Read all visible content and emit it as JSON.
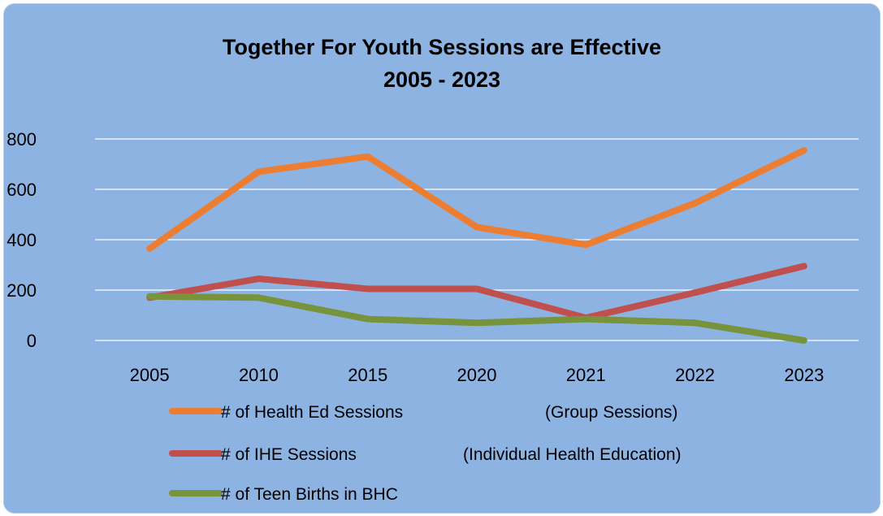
{
  "chart_data": {
    "type": "line",
    "title": "Together For Youth Sessions are Effective",
    "subtitle": "2005 - 2023",
    "categories": [
      "2005",
      "2010",
      "2015",
      "2020",
      "2021",
      "2022",
      "2023"
    ],
    "ylim": [
      0,
      800
    ],
    "yticks": [
      0,
      200,
      400,
      600,
      800
    ],
    "grid": true,
    "legend_position": "bottom",
    "series": [
      {
        "name": "# of Health Ed Sessions",
        "note": "(Group Sessions)",
        "color": "#ed7d31",
        "values": [
          365,
          670,
          730,
          450,
          380,
          545,
          755
        ]
      },
      {
        "name": "# of IHE Sessions",
        "note": "(Individual Health Education)",
        "color": "#c0504d",
        "values": [
          170,
          245,
          205,
          205,
          90,
          190,
          295
        ]
      },
      {
        "name": "# of Teen Births in BHC",
        "note": "",
        "color": "#77933c",
        "values": [
          175,
          170,
          85,
          70,
          85,
          70,
          0
        ]
      }
    ]
  }
}
